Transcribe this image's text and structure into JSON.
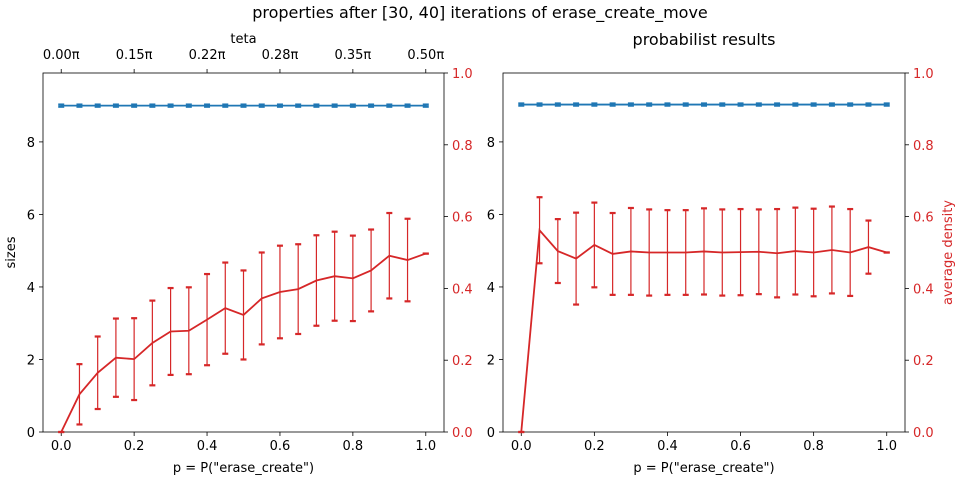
{
  "figure": {
    "suptitle": "properties after [30, 40] iterations of erase_create_move"
  },
  "colors": {
    "blue": "#1f77b4",
    "red": "#d62728",
    "black": "#000000"
  },
  "chart_data": [
    {
      "type": "line",
      "title": "",
      "xlabel": "p = P(\"erase_create\")",
      "ylabel": "sizes",
      "y2label": "",
      "top_xlabel": "teta",
      "xlim": [
        -0.05,
        1.05
      ],
      "ylim": [
        0,
        9.9
      ],
      "y2lim": [
        0,
        1.0
      ],
      "xticks": [
        "0.0",
        "0.2",
        "0.4",
        "0.6",
        "0.8",
        "1.0"
      ],
      "yticks": [
        "0",
        "2",
        "4",
        "6",
        "8"
      ],
      "y2ticks": [
        "0.0",
        "0.2",
        "0.4",
        "0.6",
        "0.8",
        "1.0"
      ],
      "top_ticks": [
        "0.00π",
        "0.15π",
        "0.22π",
        "0.28π",
        "0.35π",
        "0.50π"
      ],
      "x": [
        0.0,
        0.05,
        0.1,
        0.15,
        0.2,
        0.25,
        0.3,
        0.35,
        0.4,
        0.45,
        0.5,
        0.55,
        0.6,
        0.65,
        0.7,
        0.75,
        0.8,
        0.85,
        0.9,
        0.95,
        1.0
      ],
      "series": [
        {
          "axis": "left",
          "color": "#1f77b4",
          "values": [
            9.0,
            9.0,
            9.0,
            9.0,
            9.0,
            9.0,
            9.0,
            9.0,
            9.0,
            9.0,
            9.0,
            9.0,
            9.0,
            9.0,
            9.0,
            9.0,
            9.0,
            9.0,
            9.0,
            9.0,
            9.0
          ],
          "err": [
            0.03,
            0.03,
            0.03,
            0.03,
            0.03,
            0.03,
            0.03,
            0.03,
            0.03,
            0.03,
            0.03,
            0.03,
            0.03,
            0.03,
            0.03,
            0.03,
            0.03,
            0.03,
            0.03,
            0.03,
            0.03
          ]
        },
        {
          "axis": "right",
          "color": "#d62728",
          "values": [
            0.0,
            0.105,
            0.165,
            0.207,
            0.203,
            0.248,
            0.28,
            0.282,
            0.313,
            0.345,
            0.326,
            0.372,
            0.39,
            0.398,
            0.422,
            0.434,
            0.428,
            0.45,
            0.491,
            0.479,
            0.497
          ],
          "err": [
            0.0,
            0.084,
            0.101,
            0.109,
            0.114,
            0.118,
            0.121,
            0.121,
            0.127,
            0.127,
            0.124,
            0.128,
            0.129,
            0.125,
            0.126,
            0.124,
            0.119,
            0.114,
            0.119,
            0.115,
            0.0
          ]
        }
      ]
    },
    {
      "type": "line",
      "title": "probabilist results",
      "xlabel": "p = P(\"erase_create\")",
      "ylabel": "",
      "y2label": "average density",
      "top_xlabel": "",
      "xlim": [
        -0.05,
        1.05
      ],
      "ylim": [
        0,
        9.9
      ],
      "y2lim": [
        0,
        1.0
      ],
      "xticks": [
        "0.0",
        "0.2",
        "0.4",
        "0.6",
        "0.8",
        "1.0"
      ],
      "yticks": [
        "0",
        "2",
        "4",
        "6",
        "8"
      ],
      "y2ticks": [
        "0.0",
        "0.2",
        "0.4",
        "0.6",
        "0.8",
        "1.0"
      ],
      "top_ticks": [],
      "x": [
        0.0,
        0.05,
        0.1,
        0.15,
        0.2,
        0.25,
        0.3,
        0.35,
        0.4,
        0.45,
        0.5,
        0.55,
        0.6,
        0.65,
        0.7,
        0.75,
        0.8,
        0.85,
        0.9,
        0.95,
        1.0
      ],
      "series": [
        {
          "axis": "left",
          "color": "#1f77b4",
          "values": [
            9.03,
            9.03,
            9.03,
            9.03,
            9.03,
            9.03,
            9.03,
            9.03,
            9.03,
            9.03,
            9.03,
            9.03,
            9.03,
            9.03,
            9.03,
            9.03,
            9.03,
            9.03,
            9.03,
            9.03,
            9.03
          ],
          "err": [
            0.03,
            0.03,
            0.03,
            0.03,
            0.03,
            0.03,
            0.03,
            0.03,
            0.03,
            0.03,
            0.03,
            0.03,
            0.03,
            0.03,
            0.03,
            0.03,
            0.03,
            0.03,
            0.03,
            0.03,
            0.03
          ]
        },
        {
          "axis": "right",
          "color": "#d62728",
          "values": [
            0.0,
            0.562,
            0.504,
            0.483,
            0.521,
            0.496,
            0.503,
            0.5,
            0.5,
            0.5,
            0.503,
            0.5,
            0.501,
            0.502,
            0.498,
            0.504,
            0.5,
            0.507,
            0.5,
            0.515,
            0.5
          ],
          "err": [
            0.0,
            0.092,
            0.089,
            0.128,
            0.118,
            0.114,
            0.121,
            0.12,
            0.118,
            0.118,
            0.12,
            0.12,
            0.12,
            0.118,
            0.123,
            0.121,
            0.122,
            0.121,
            0.121,
            0.074,
            0.0
          ]
        }
      ]
    }
  ]
}
